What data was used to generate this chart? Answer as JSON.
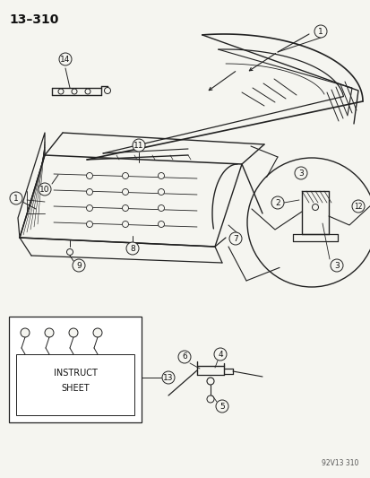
{
  "title": "13–310",
  "background_color": "#f5f5f0",
  "line_color": "#222222",
  "text_color": "#111111",
  "footer_text": "92V13 310",
  "figsize": [
    4.14,
    5.33
  ],
  "dpi": 100
}
